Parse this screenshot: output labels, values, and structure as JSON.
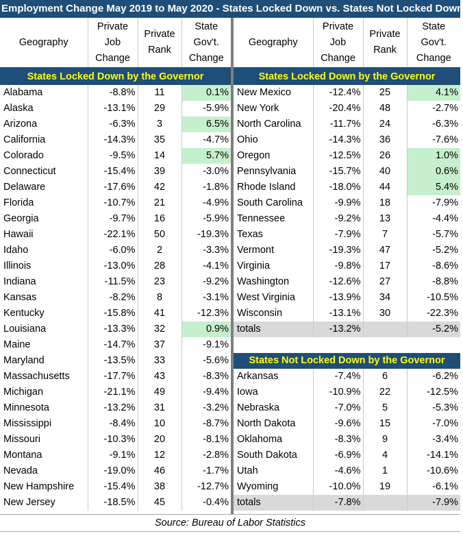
{
  "title": "Employment Change May 2019 to May 2020 - States Locked Down vs. States Not Locked Down",
  "headers": {
    "geography": "Geography",
    "job_change": [
      "Private",
      "Job",
      "Change"
    ],
    "rank": [
      "Private",
      "Rank"
    ],
    "gov": [
      "State",
      "Gov't.",
      "Change"
    ]
  },
  "sections": {
    "locked": "States Locked Down by the Governor",
    "not_locked": "States Not Locked Down by the Governor"
  },
  "left_rows": [
    {
      "state": "Alabama",
      "job": "-8.8%",
      "rank": "11",
      "gov": "0.1%",
      "positive": true
    },
    {
      "state": "Alaska",
      "job": "-13.1%",
      "rank": "29",
      "gov": "-5.9%",
      "positive": false
    },
    {
      "state": "Arizona",
      "job": "-6.3%",
      "rank": "3",
      "gov": "6.5%",
      "positive": true
    },
    {
      "state": "California",
      "job": "-14.3%",
      "rank": "35",
      "gov": "-4.7%",
      "positive": false
    },
    {
      "state": "Colorado",
      "job": "-9.5%",
      "rank": "14",
      "gov": "5.7%",
      "positive": true
    },
    {
      "state": "Connecticut",
      "job": "-15.4%",
      "rank": "39",
      "gov": "-3.0%",
      "positive": false
    },
    {
      "state": "Delaware",
      "job": "-17.6%",
      "rank": "42",
      "gov": "-1.8%",
      "positive": false
    },
    {
      "state": "Florida",
      "job": "-10.7%",
      "rank": "21",
      "gov": "-4.9%",
      "positive": false
    },
    {
      "state": "Georgia",
      "job": "-9.7%",
      "rank": "16",
      "gov": "-5.9%",
      "positive": false
    },
    {
      "state": "Hawaii",
      "job": "-22.1%",
      "rank": "50",
      "gov": "-19.3%",
      "positive": false
    },
    {
      "state": "Idaho",
      "job": "-6.0%",
      "rank": "2",
      "gov": "-3.3%",
      "positive": false
    },
    {
      "state": "Illinois",
      "job": "-13.0%",
      "rank": "28",
      "gov": "-4.1%",
      "positive": false
    },
    {
      "state": "Indiana",
      "job": "-11.5%",
      "rank": "23",
      "gov": "-9.2%",
      "positive": false
    },
    {
      "state": "Kansas",
      "job": "-8.2%",
      "rank": "8",
      "gov": "-3.1%",
      "positive": false
    },
    {
      "state": "Kentucky",
      "job": "-15.8%",
      "rank": "41",
      "gov": "-12.3%",
      "positive": false
    },
    {
      "state": "Louisiana",
      "job": "-13.3%",
      "rank": "32",
      "gov": "0.9%",
      "positive": true
    },
    {
      "state": "Maine",
      "job": "-14.7%",
      "rank": "37",
      "gov": "-9.1%",
      "positive": false
    },
    {
      "state": "Maryland",
      "job": "-13.5%",
      "rank": "33",
      "gov": "-5.6%",
      "positive": false
    },
    {
      "state": "Massachusetts",
      "job": "-17.7%",
      "rank": "43",
      "gov": "-8.3%",
      "positive": false
    },
    {
      "state": "Michigan",
      "job": "-21.1%",
      "rank": "49",
      "gov": "-9.4%",
      "positive": false
    },
    {
      "state": "Minnesota",
      "job": "-13.2%",
      "rank": "31",
      "gov": "-3.2%",
      "positive": false
    },
    {
      "state": "Mississippi",
      "job": "-8.4%",
      "rank": "10",
      "gov": "-8.7%",
      "positive": false
    },
    {
      "state": "Missouri",
      "job": "-10.3%",
      "rank": "20",
      "gov": "-8.1%",
      "positive": false
    },
    {
      "state": "Montana",
      "job": "-9.1%",
      "rank": "12",
      "gov": "-2.8%",
      "positive": false
    },
    {
      "state": "Nevada",
      "job": "-19.0%",
      "rank": "46",
      "gov": "-1.7%",
      "positive": false
    },
    {
      "state": "New Hampshire",
      "job": "-15.4%",
      "rank": "38",
      "gov": "-12.7%",
      "positive": false
    },
    {
      "state": "New Jersey",
      "job": "-18.5%",
      "rank": "45",
      "gov": "-0.4%",
      "positive": false
    }
  ],
  "right_locked_rows": [
    {
      "state": "New Mexico",
      "job": "-12.4%",
      "rank": "25",
      "gov": "4.1%",
      "positive": true
    },
    {
      "state": "New York",
      "job": "-20.4%",
      "rank": "48",
      "gov": "-2.7%",
      "positive": false
    },
    {
      "state": "North Carolina",
      "job": "-11.7%",
      "rank": "24",
      "gov": "-6.3%",
      "positive": false
    },
    {
      "state": "Ohio",
      "job": "-14.3%",
      "rank": "36",
      "gov": "-7.6%",
      "positive": false
    },
    {
      "state": "Oregon",
      "job": "-12.5%",
      "rank": "26",
      "gov": "1.0%",
      "positive": true
    },
    {
      "state": "Pennsylvania",
      "job": "-15.7%",
      "rank": "40",
      "gov": "0.6%",
      "positive": true
    },
    {
      "state": "Rhode Island",
      "job": "-18.0%",
      "rank": "44",
      "gov": "5.4%",
      "positive": true
    },
    {
      "state": "South Carolina",
      "job": "-9.9%",
      "rank": "18",
      "gov": "-7.9%",
      "positive": false
    },
    {
      "state": "Tennessee",
      "job": "-9.2%",
      "rank": "13",
      "gov": "-4.4%",
      "positive": false
    },
    {
      "state": "Texas",
      "job": "-7.9%",
      "rank": "7",
      "gov": "-5.7%",
      "positive": false
    },
    {
      "state": "Vermont",
      "job": "-19.3%",
      "rank": "47",
      "gov": "-5.2%",
      "positive": false
    },
    {
      "state": "Virginia",
      "job": "-9.8%",
      "rank": "17",
      "gov": "-8.6%",
      "positive": false
    },
    {
      "state": "Washington",
      "job": "-12.6%",
      "rank": "27",
      "gov": "-8.8%",
      "positive": false
    },
    {
      "state": "West Virginia",
      "job": "-13.9%",
      "rank": "34",
      "gov": "-10.5%",
      "positive": false
    },
    {
      "state": "Wisconsin",
      "job": "-13.1%",
      "rank": "30",
      "gov": "-22.3%",
      "positive": false
    }
  ],
  "locked_totals": {
    "label": "totals",
    "job": "-13.2%",
    "gov": "-5.2%"
  },
  "right_not_locked_rows": [
    {
      "state": "Arkansas",
      "job": "-7.4%",
      "rank": "6",
      "gov": "-6.2%",
      "positive": false
    },
    {
      "state": "Iowa",
      "job": "-10.9%",
      "rank": "22",
      "gov": "-12.5%",
      "positive": false
    },
    {
      "state": "Nebraska",
      "job": "-7.0%",
      "rank": "5",
      "gov": "-5.3%",
      "positive": false
    },
    {
      "state": "North Dakota",
      "job": "-9.6%",
      "rank": "15",
      "gov": "-7.0%",
      "positive": false
    },
    {
      "state": "Oklahoma",
      "job": "-8.3%",
      "rank": "9",
      "gov": "-3.4%",
      "positive": false
    },
    {
      "state": "South Dakota",
      "job": "-6.9%",
      "rank": "4",
      "gov": "-14.1%",
      "positive": false
    },
    {
      "state": "Utah",
      "job": "-4.6%",
      "rank": "1",
      "gov": "-10.6%",
      "positive": false
    },
    {
      "state": "Wyoming",
      "job": "-10.0%",
      "rank": "19",
      "gov": "-6.1%",
      "positive": false
    }
  ],
  "not_locked_totals": {
    "label": "totals",
    "job": "-7.8%",
    "gov": "-7.9%"
  },
  "source": "Source: Bureau of Labor Statistics"
}
